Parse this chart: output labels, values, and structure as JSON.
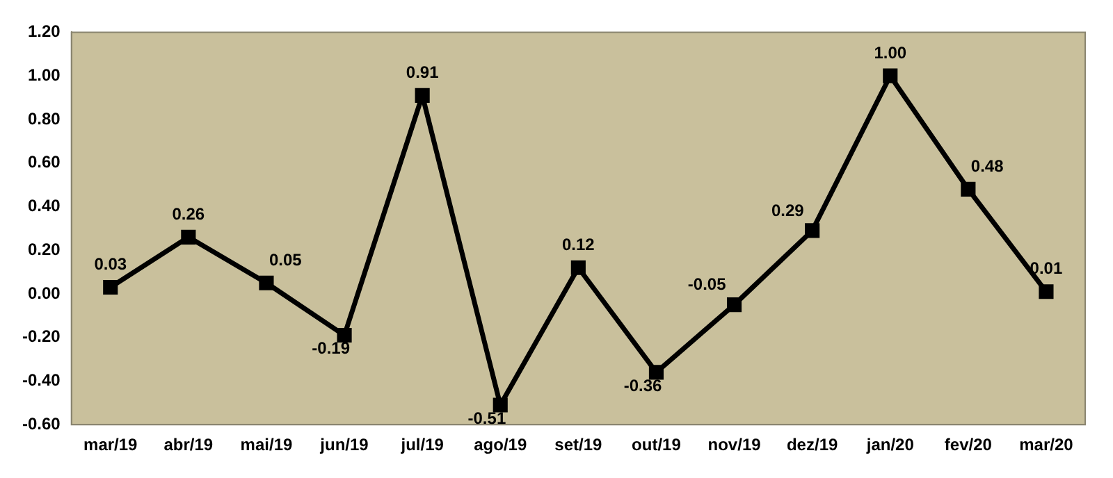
{
  "chart_data": {
    "type": "line",
    "categories": [
      "mar/19",
      "abr/19",
      "mai/19",
      "jun/19",
      "jul/19",
      "ago/19",
      "set/19",
      "out/19",
      "nov/19",
      "dez/19",
      "jan/20",
      "fev/20",
      "mar/20"
    ],
    "series": [
      {
        "color": "#000000",
        "values": [
          0.03,
          0.26,
          0.05,
          -0.19,
          0.91,
          -0.51,
          0.12,
          -0.36,
          -0.05,
          0.29,
          1.0,
          0.48,
          0.01
        ],
        "value_labels": [
          "0.03",
          "0.26",
          "0.05",
          "-0.19",
          "0.91",
          "-0.51",
          "0.12",
          "-0.36",
          "-0.05",
          "0.29",
          "1.00",
          "0.48",
          "0.01"
        ]
      }
    ],
    "ylim": [
      -0.6,
      1.2
    ],
    "yticks": [
      {
        "value": -0.6,
        "label": "-0.60"
      },
      {
        "value": -0.4,
        "label": "-0.40"
      },
      {
        "value": -0.2,
        "label": "-0.20"
      },
      {
        "value": 0,
        "label": "0.00"
      },
      {
        "value": 0.2,
        "label": "0.20"
      },
      {
        "value": 0.4,
        "label": "0.40"
      },
      {
        "value": 0.6,
        "label": "0.60"
      },
      {
        "value": 0.8,
        "label": "0.80"
      },
      {
        "value": 1.0,
        "label": "1.00"
      },
      {
        "value": 1.2,
        "label": "1.20"
      }
    ],
    "grid": false,
    "legend": false,
    "marker": "square",
    "line_style": "solid"
  }
}
